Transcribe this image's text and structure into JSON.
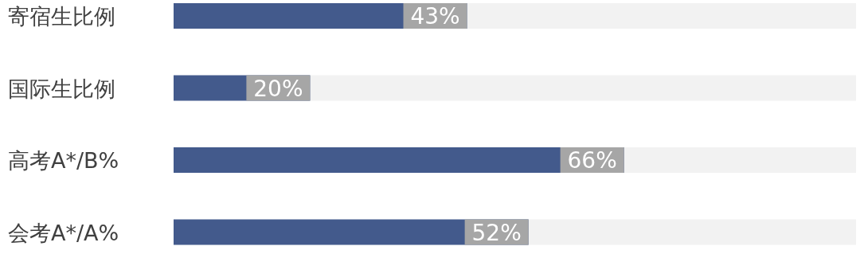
{
  "chart_data": {
    "type": "bar",
    "orientation": "horizontal",
    "categories": [
      "寄宿生比例",
      "国际生比例",
      "高考A*/B%",
      "会考A*/A%"
    ],
    "values": [
      43,
      20,
      66,
      52
    ],
    "value_labels": [
      "43%",
      "20%",
      "66%",
      "52%"
    ],
    "color": "#435a8c",
    "xlim": [
      0,
      100
    ],
    "tick_labels": "y"
  }
}
